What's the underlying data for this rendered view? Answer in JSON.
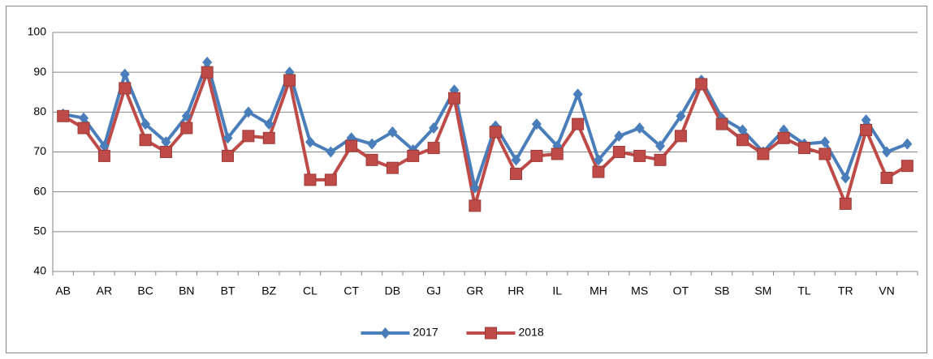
{
  "chart_data": {
    "type": "line",
    "categories": [
      "AB",
      null,
      "AR",
      null,
      "BC",
      null,
      "BN",
      null,
      "BT",
      null,
      "BZ",
      null,
      "CL",
      null,
      "CT",
      null,
      "DB",
      null,
      "GJ",
      null,
      "GR",
      null,
      "HR",
      null,
      "IL",
      null,
      "MH",
      null,
      "MS",
      null,
      "OT",
      null,
      "SB",
      null,
      "SM",
      null,
      "TL",
      null,
      "TR",
      null,
      "VN",
      null
    ],
    "series": [
      {
        "name": "2017",
        "color": "#4a7ebb",
        "marker": "diamond",
        "values": [
          79.5,
          78.5,
          71.5,
          89.5,
          77,
          72.5,
          79,
          92.5,
          73.5,
          80,
          77,
          90,
          72.5,
          70,
          73.5,
          72,
          75,
          70.5,
          76,
          85.5,
          61,
          76.5,
          68,
          77,
          71.5,
          84.5,
          68,
          74,
          76,
          71.5,
          79,
          88,
          78.5,
          75.5,
          70,
          75.5,
          72,
          72.5,
          63.5,
          78,
          70,
          72
        ]
      },
      {
        "name": "2018",
        "color": "#be4b48",
        "marker": "square",
        "values": [
          79,
          76,
          69,
          86,
          73,
          70,
          76,
          90,
          69,
          74,
          73.5,
          88,
          63,
          63,
          71.5,
          68,
          66,
          69,
          71,
          83.5,
          56.5,
          75,
          64.5,
          69,
          69.5,
          77,
          65,
          70,
          69,
          68,
          74,
          87,
          77,
          73,
          69.5,
          73.5,
          71,
          69.5,
          57,
          75.5,
          63.5,
          66.5
        ]
      }
    ],
    "ylim": [
      40,
      100
    ],
    "yticks": [
      40,
      50,
      60,
      70,
      80,
      90,
      100
    ],
    "grid": true,
    "legend": "bottom"
  }
}
